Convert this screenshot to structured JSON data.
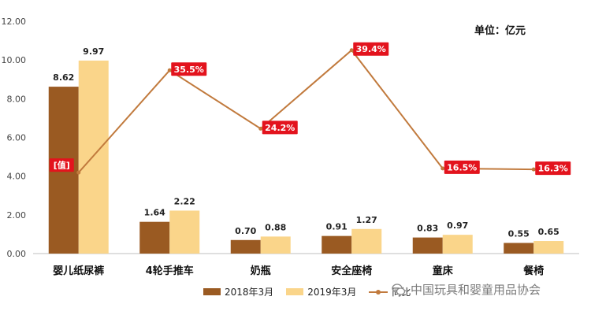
{
  "unit_label": "单位：亿元",
  "watermark": "中国玩具和婴童用品协会",
  "legend": {
    "s1": "2018年3月",
    "s2": "2019年3月",
    "s3": "同比"
  },
  "colors": {
    "s1": "#9a5a22",
    "s2": "#fad58a",
    "line": "#c17a3d",
    "label_bg": "#e3131d"
  },
  "chart_data": {
    "type": "bar",
    "categories": [
      "婴儿纸尿裤",
      "4轮手推车",
      "奶瓶",
      "安全座椅",
      "童床",
      "餐椅"
    ],
    "series": [
      {
        "name": "2018年3月",
        "type": "bar",
        "values": [
          8.62,
          1.64,
          0.7,
          0.91,
          0.83,
          0.55
        ],
        "labels": [
          "8.62",
          "1.64",
          "0.70",
          "0.91",
          "0.83",
          "0.55"
        ]
      },
      {
        "name": "2019年3月",
        "type": "bar",
        "values": [
          9.97,
          2.22,
          0.88,
          1.27,
          0.97,
          0.65
        ],
        "labels": [
          "9.97",
          "2.22",
          "0.88",
          "1.27",
          "0.97",
          "0.65"
        ]
      },
      {
        "name": "同比",
        "type": "line",
        "values": [
          15.7,
          35.5,
          24.2,
          39.4,
          16.5,
          16.3
        ],
        "labels": [
          "[值]",
          "35.5%",
          "24.2%",
          "39.4%",
          "16.5%",
          "16.3%"
        ]
      }
    ],
    "y_axis": {
      "min": 0,
      "max": 12,
      "step": 2,
      "tick_labels": [
        "0.00",
        "2.00",
        "4.00",
        "6.00",
        "8.00",
        "10.00",
        "12.00"
      ]
    },
    "y2_axis": {
      "min": 0,
      "max": 45
    },
    "grid": false,
    "legend_position": "bottom"
  }
}
